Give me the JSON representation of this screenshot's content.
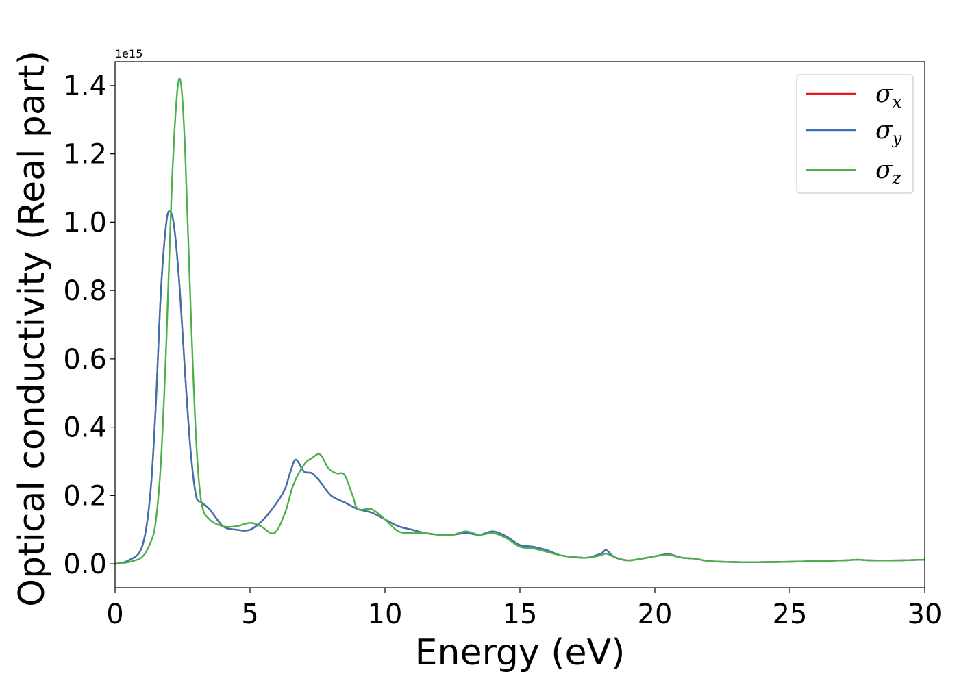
{
  "chart_data": {
    "type": "line",
    "xlabel": "Energy (eV)",
    "ylabel": "Optical conductivity (Real part)",
    "y_offset_label": "1e15",
    "xlim": [
      0,
      30
    ],
    "ylim": [
      -0.07,
      1.47
    ],
    "y_scale_factor": 1000000000000000.0,
    "x_ticks": [
      0,
      5,
      10,
      15,
      20,
      25,
      30
    ],
    "x_tick_labels": [
      "0",
      "5",
      "10",
      "15",
      "20",
      "25",
      "30"
    ],
    "y_ticks": [
      0.0,
      0.2,
      0.4,
      0.6,
      0.8,
      1.0,
      1.2,
      1.4
    ],
    "y_tick_labels": [
      "0.0",
      "0.2",
      "0.4",
      "0.6",
      "0.8",
      "1.0",
      "1.2",
      "1.4"
    ],
    "grid": false,
    "legend_position": "top-right",
    "series": [
      {
        "name": "σx",
        "symbol": "σ",
        "subscript": "x",
        "color": "#e41a1c",
        "x": [
          0,
          0.5,
          1,
          1.3,
          1.5,
          1.7,
          1.9,
          2.05,
          2.2,
          2.4,
          2.6,
          2.8,
          3,
          3.2,
          3.5,
          4,
          4.5,
          5,
          5.5,
          6,
          6.3,
          6.5,
          6.7,
          7,
          7.3,
          7.6,
          8,
          8.5,
          9,
          9.5,
          10,
          10.5,
          11,
          11.5,
          12,
          12.5,
          13,
          13.5,
          14,
          14.5,
          15,
          15.5,
          16,
          16.5,
          17,
          17.5,
          18,
          18.2,
          18.5,
          19,
          19.5,
          20,
          20.5,
          21,
          21.5,
          22,
          23,
          24,
          25,
          26,
          27,
          27.5,
          28,
          29,
          30
        ],
        "y": [
          0,
          0.01,
          0.05,
          0.2,
          0.45,
          0.8,
          1.0,
          1.03,
          0.98,
          0.8,
          0.55,
          0.33,
          0.2,
          0.18,
          0.16,
          0.11,
          0.1,
          0.1,
          0.13,
          0.18,
          0.22,
          0.27,
          0.305,
          0.27,
          0.265,
          0.24,
          0.2,
          0.18,
          0.16,
          0.15,
          0.13,
          0.11,
          0.1,
          0.09,
          0.085,
          0.085,
          0.09,
          0.085,
          0.095,
          0.08,
          0.055,
          0.05,
          0.04,
          0.025,
          0.02,
          0.018,
          0.03,
          0.04,
          0.02,
          0.01,
          0.015,
          0.022,
          0.028,
          0.018,
          0.015,
          0.008,
          0.005,
          0.005,
          0.006,
          0.008,
          0.01,
          0.012,
          0.01,
          0.01,
          0.012
        ]
      },
      {
        "name": "σy",
        "symbol": "σ",
        "subscript": "y",
        "color": "#3a73b0",
        "x": [
          0,
          0.5,
          1,
          1.3,
          1.5,
          1.7,
          1.9,
          2.05,
          2.2,
          2.4,
          2.6,
          2.8,
          3,
          3.2,
          3.5,
          4,
          4.5,
          5,
          5.5,
          6,
          6.3,
          6.5,
          6.7,
          7,
          7.3,
          7.6,
          8,
          8.5,
          9,
          9.5,
          10,
          10.5,
          11,
          11.5,
          12,
          12.5,
          13,
          13.5,
          14,
          14.5,
          15,
          15.5,
          16,
          16.5,
          17,
          17.5,
          18,
          18.2,
          18.5,
          19,
          19.5,
          20,
          20.5,
          21,
          21.5,
          22,
          23,
          24,
          25,
          26,
          27,
          27.5,
          28,
          29,
          30
        ],
        "y": [
          0,
          0.01,
          0.05,
          0.2,
          0.45,
          0.8,
          1.0,
          1.03,
          0.98,
          0.8,
          0.55,
          0.33,
          0.2,
          0.18,
          0.16,
          0.11,
          0.1,
          0.1,
          0.13,
          0.18,
          0.22,
          0.27,
          0.305,
          0.27,
          0.265,
          0.24,
          0.2,
          0.18,
          0.16,
          0.15,
          0.13,
          0.11,
          0.1,
          0.09,
          0.085,
          0.085,
          0.09,
          0.085,
          0.095,
          0.08,
          0.055,
          0.05,
          0.04,
          0.025,
          0.02,
          0.018,
          0.03,
          0.04,
          0.02,
          0.01,
          0.015,
          0.022,
          0.028,
          0.018,
          0.015,
          0.008,
          0.005,
          0.005,
          0.006,
          0.008,
          0.01,
          0.012,
          0.01,
          0.01,
          0.012
        ]
      },
      {
        "name": "σz",
        "symbol": "σ",
        "subscript": "z",
        "color": "#4daf4a",
        "x": [
          0,
          0.5,
          1,
          1.3,
          1.5,
          1.7,
          1.9,
          2.1,
          2.3,
          2.45,
          2.6,
          2.8,
          3,
          3.2,
          3.5,
          4,
          4.5,
          5,
          5.4,
          5.9,
          6.3,
          6.6,
          7,
          7.3,
          7.6,
          7.9,
          8.2,
          8.5,
          8.8,
          9,
          9.5,
          10,
          10.5,
          11,
          11.5,
          12,
          12.5,
          13,
          13.5,
          14,
          14.5,
          15,
          15.5,
          16,
          16.5,
          17,
          17.5,
          18,
          18.2,
          18.5,
          19,
          19.5,
          20,
          20.5,
          21,
          21.5,
          22,
          23,
          24,
          25,
          26,
          27,
          27.5,
          28,
          29,
          30
        ],
        "y": [
          0,
          0.005,
          0.02,
          0.06,
          0.12,
          0.3,
          0.65,
          1.1,
          1.38,
          1.4,
          1.2,
          0.75,
          0.37,
          0.18,
          0.13,
          0.11,
          0.11,
          0.12,
          0.11,
          0.09,
          0.15,
          0.23,
          0.29,
          0.31,
          0.32,
          0.28,
          0.265,
          0.26,
          0.2,
          0.16,
          0.16,
          0.13,
          0.095,
          0.09,
          0.09,
          0.085,
          0.085,
          0.095,
          0.085,
          0.09,
          0.075,
          0.05,
          0.045,
          0.035,
          0.025,
          0.02,
          0.018,
          0.025,
          0.03,
          0.02,
          0.01,
          0.015,
          0.022,
          0.026,
          0.018,
          0.015,
          0.008,
          0.005,
          0.005,
          0.006,
          0.008,
          0.01,
          0.012,
          0.01,
          0.01,
          0.012
        ]
      }
    ]
  }
}
